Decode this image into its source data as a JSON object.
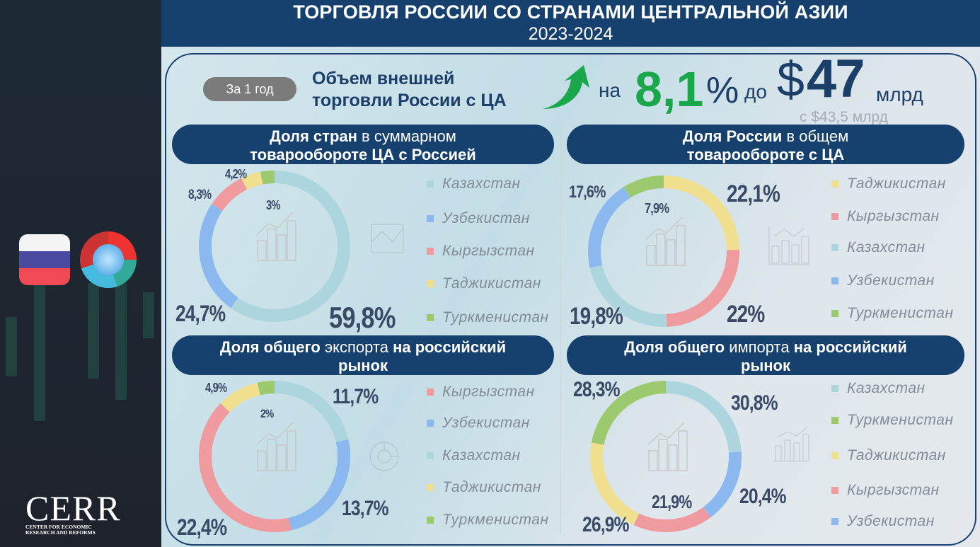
{
  "header": {
    "title": "ТОРГОВЛЯ РОССИИ СО СТРАНАМИ ЦЕНТРАЛЬНОЙ АЗИИ",
    "years": "2023-2024"
  },
  "summary": {
    "period": "За 1 год",
    "headline_line1": "Объем внешней",
    "headline_line2": "торговли России с ЦА",
    "growth_prefix": "на",
    "growth_value": "8,1",
    "growth_unit": "%",
    "to_prefix": "до",
    "currency": "$",
    "amount": "47",
    "amount_unit": "млрд",
    "previous": "с $43,5 млрд"
  },
  "branding": {
    "logo_text": "CERR",
    "logo_subtitle": "CENTER FOR ECONOMIC RESEARCH AND REFORMS"
  },
  "colors": {
    "header": "#16406d",
    "growth": "#1aa64b",
    "Казахстан": "#acd5dd",
    "Узбекистан": "#8bb8ee",
    "Кыргызстан": "#ef9a9f",
    "Таджикистан": "#f1df90",
    "Туркменистан": "#9dc96e"
  },
  "chart_data": [
    {
      "type": "pie",
      "title_bold": "Доля стран",
      "title_rest": "в суммарном",
      "title_line2": "товарообороте ЦА с Россией",
      "segments": [
        {
          "name": "Казахстан",
          "value": 59.8,
          "label": "59,8%"
        },
        {
          "name": "Узбекистан",
          "value": 24.7,
          "label": "24,7%"
        },
        {
          "name": "Кыргызстан",
          "value": 8.3,
          "label": "8,3%"
        },
        {
          "name": "Таджикистан",
          "value": 4.2,
          "label": "4,2%"
        },
        {
          "name": "Туркменистан",
          "value": 3,
          "label": "3%"
        }
      ],
      "legend": [
        "Казахстан",
        "Узбекистан",
        "Кыргызстан",
        "Таджикистан",
        "Туркменистан"
      ]
    },
    {
      "type": "pie",
      "title_bold": "Доля России",
      "title_rest": "в общем",
      "title_line2": "товарообороте с ЦА",
      "segments": [
        {
          "name": "Таджикистан",
          "value": 22.1,
          "label": "22,1%"
        },
        {
          "name": "Кыргызстан",
          "value": 22,
          "label": "22%"
        },
        {
          "name": "Казахстан",
          "value": 19.8,
          "label": "19,8%"
        },
        {
          "name": "Узбекистан",
          "value": 17.6,
          "label": "17,6%"
        },
        {
          "name": "Туркменистан",
          "value": 7.9,
          "label": "7,9%"
        }
      ],
      "legend": [
        "Таджикистан",
        "Кыргызстан",
        "Казахстан",
        "Узбекистан",
        "Туркменистан"
      ]
    },
    {
      "type": "pie",
      "title_bold": "Доля общего",
      "title_rest": "экспорта",
      "title_bold2": "на российский",
      "title_line2": "рынок",
      "segments": [
        {
          "name": "Казахстан",
          "value": 11.7,
          "label": "11,7%"
        },
        {
          "name": "Узбекистан",
          "value": 13.7,
          "label": "13,7%"
        },
        {
          "name": "Кыргызстан",
          "value": 22.4,
          "label": "22,4%"
        },
        {
          "name": "Таджикистан",
          "value": 4.9,
          "label": "4,9%"
        },
        {
          "name": "Туркменистан",
          "value": 2,
          "label": "2%"
        }
      ],
      "legend": [
        "Кыргызстан",
        "Узбекистан",
        "Казахстан",
        "Таджикистан",
        "Туркменистан"
      ]
    },
    {
      "type": "pie",
      "title_bold": "Доля общего",
      "title_rest": "импорта",
      "title_bold2": "на российский",
      "title_line2": "рынок",
      "segments": [
        {
          "name": "Казахстан",
          "value": 30.8,
          "label": "30,8%"
        },
        {
          "name": "Узбекистан",
          "value": 20.4,
          "label": "20,4%"
        },
        {
          "name": "Кыргызстан",
          "value": 21.9,
          "label": "21,9%"
        },
        {
          "name": "Таджикистан",
          "value": 26.9,
          "label": "26,9%"
        },
        {
          "name": "Туркменистан",
          "value": 28.3,
          "label": "28,3%"
        }
      ],
      "legend": [
        "Казахстан",
        "Туркменистан",
        "Таджикистан",
        "Кыргызстан",
        "Узбекистан"
      ]
    }
  ]
}
